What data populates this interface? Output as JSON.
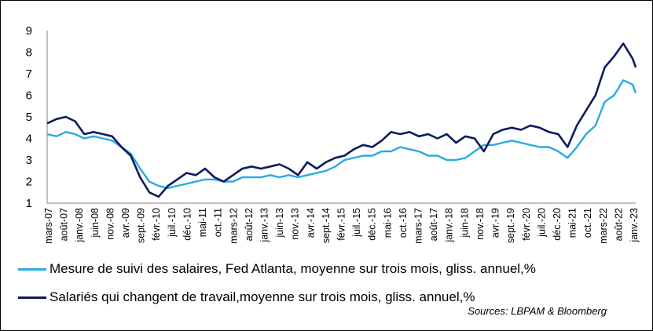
{
  "chart_data": {
    "type": "line",
    "title": "",
    "xlabel": "",
    "ylabel": "",
    "ylim": [
      1,
      9
    ],
    "yticks": [
      "1",
      "2",
      "3",
      "4",
      "5",
      "6",
      "7",
      "8",
      "9"
    ],
    "x_tick_labels": [
      "mars-07",
      "août-07",
      "janv.-08",
      "juin-08",
      "nov.-08",
      "avr.-09",
      "sept.-09",
      "févr.-10",
      "juil.-10",
      "déc.-10",
      "mai-11",
      "oct.-11",
      "mars-12",
      "août-12",
      "janv.-13",
      "juin-13",
      "nov.-13",
      "avr.-14",
      "sept.-14",
      "févr.-15",
      "juil.-15",
      "déc.-15",
      "mai-16",
      "oct.-16",
      "mars-17",
      "août-17",
      "janv.-18",
      "juin-18",
      "nov.-18",
      "avr.-19",
      "sept.-19",
      "févr.-20",
      "juil.-20",
      "déc.-20",
      "mai-21",
      "oct.-21",
      "mars-22",
      "août-22",
      "janv.-23"
    ],
    "x_start": "2007-03",
    "x_end": "2023-01",
    "grid": false,
    "legend_position": "bottom",
    "series": [
      {
        "name": "Mesure de suivi des salaires, Fed Atlanta, moyenne sur trois mois, gliss. annuel,%",
        "color": "#29ABE2",
        "x": [
          "2007-03",
          "2007-06",
          "2007-09",
          "2007-12",
          "2008-03",
          "2008-06",
          "2008-09",
          "2008-12",
          "2009-03",
          "2009-06",
          "2009-09",
          "2009-12",
          "2010-03",
          "2010-06",
          "2010-09",
          "2010-12",
          "2011-03",
          "2011-06",
          "2011-09",
          "2011-12",
          "2012-03",
          "2012-06",
          "2012-09",
          "2012-12",
          "2013-03",
          "2013-06",
          "2013-09",
          "2013-12",
          "2014-03",
          "2014-06",
          "2014-09",
          "2014-12",
          "2015-03",
          "2015-06",
          "2015-09",
          "2015-12",
          "2016-03",
          "2016-06",
          "2016-09",
          "2016-12",
          "2017-03",
          "2017-06",
          "2017-09",
          "2017-12",
          "2018-03",
          "2018-06",
          "2018-09",
          "2018-12",
          "2019-03",
          "2019-06",
          "2019-09",
          "2019-12",
          "2020-03",
          "2020-06",
          "2020-09",
          "2020-12",
          "2021-03",
          "2021-06",
          "2021-09",
          "2021-12",
          "2022-03",
          "2022-06",
          "2022-09",
          "2022-12",
          "2023-01"
        ],
        "values": [
          4.2,
          4.1,
          4.3,
          4.2,
          4.0,
          4.1,
          4.0,
          3.9,
          3.6,
          3.3,
          2.6,
          2.0,
          1.8,
          1.7,
          1.8,
          1.9,
          2.0,
          2.1,
          2.1,
          2.0,
          2.0,
          2.2,
          2.2,
          2.2,
          2.3,
          2.2,
          2.3,
          2.2,
          2.3,
          2.4,
          2.5,
          2.7,
          3.0,
          3.1,
          3.2,
          3.2,
          3.4,
          3.4,
          3.6,
          3.5,
          3.4,
          3.2,
          3.2,
          3.0,
          3.0,
          3.1,
          3.4,
          3.7,
          3.7,
          3.8,
          3.9,
          3.8,
          3.7,
          3.6,
          3.6,
          3.4,
          3.1,
          3.6,
          4.2,
          4.6,
          5.7,
          6.0,
          6.7,
          6.5,
          6.1
        ]
      },
      {
        "name": "Salariés qui changent de travail,moyenne sur trois mois, gliss. annuel,%",
        "color": "#0D1B5E",
        "x": [
          "2007-03",
          "2007-06",
          "2007-09",
          "2007-12",
          "2008-03",
          "2008-06",
          "2008-09",
          "2008-12",
          "2009-03",
          "2009-06",
          "2009-09",
          "2009-12",
          "2010-03",
          "2010-06",
          "2010-09",
          "2010-12",
          "2011-03",
          "2011-06",
          "2011-09",
          "2011-12",
          "2012-03",
          "2012-06",
          "2012-09",
          "2012-12",
          "2013-03",
          "2013-06",
          "2013-09",
          "2013-12",
          "2014-03",
          "2014-06",
          "2014-09",
          "2014-12",
          "2015-03",
          "2015-06",
          "2015-09",
          "2015-12",
          "2016-03",
          "2016-06",
          "2016-09",
          "2016-12",
          "2017-03",
          "2017-06",
          "2017-09",
          "2017-12",
          "2018-03",
          "2018-06",
          "2018-09",
          "2018-12",
          "2019-03",
          "2019-06",
          "2019-09",
          "2019-12",
          "2020-03",
          "2020-06",
          "2020-09",
          "2020-12",
          "2021-03",
          "2021-06",
          "2021-09",
          "2021-12",
          "2022-03",
          "2022-06",
          "2022-09",
          "2022-12",
          "2023-01"
        ],
        "values": [
          4.7,
          4.9,
          5.0,
          4.8,
          4.2,
          4.3,
          4.2,
          4.1,
          3.6,
          3.2,
          2.2,
          1.5,
          1.3,
          1.8,
          2.1,
          2.4,
          2.3,
          2.6,
          2.2,
          2.0,
          2.3,
          2.6,
          2.7,
          2.6,
          2.7,
          2.8,
          2.6,
          2.3,
          2.9,
          2.6,
          2.9,
          3.1,
          3.2,
          3.5,
          3.7,
          3.6,
          3.9,
          4.3,
          4.2,
          4.3,
          4.1,
          4.2,
          4.0,
          4.2,
          3.8,
          4.1,
          4.0,
          3.4,
          4.2,
          4.4,
          4.5,
          4.4,
          4.6,
          4.5,
          4.3,
          4.2,
          3.6,
          4.6,
          5.3,
          6.0,
          7.3,
          7.8,
          8.4,
          7.7,
          7.3
        ]
      }
    ],
    "source": "Sources: LBPAM & Bloomberg"
  }
}
